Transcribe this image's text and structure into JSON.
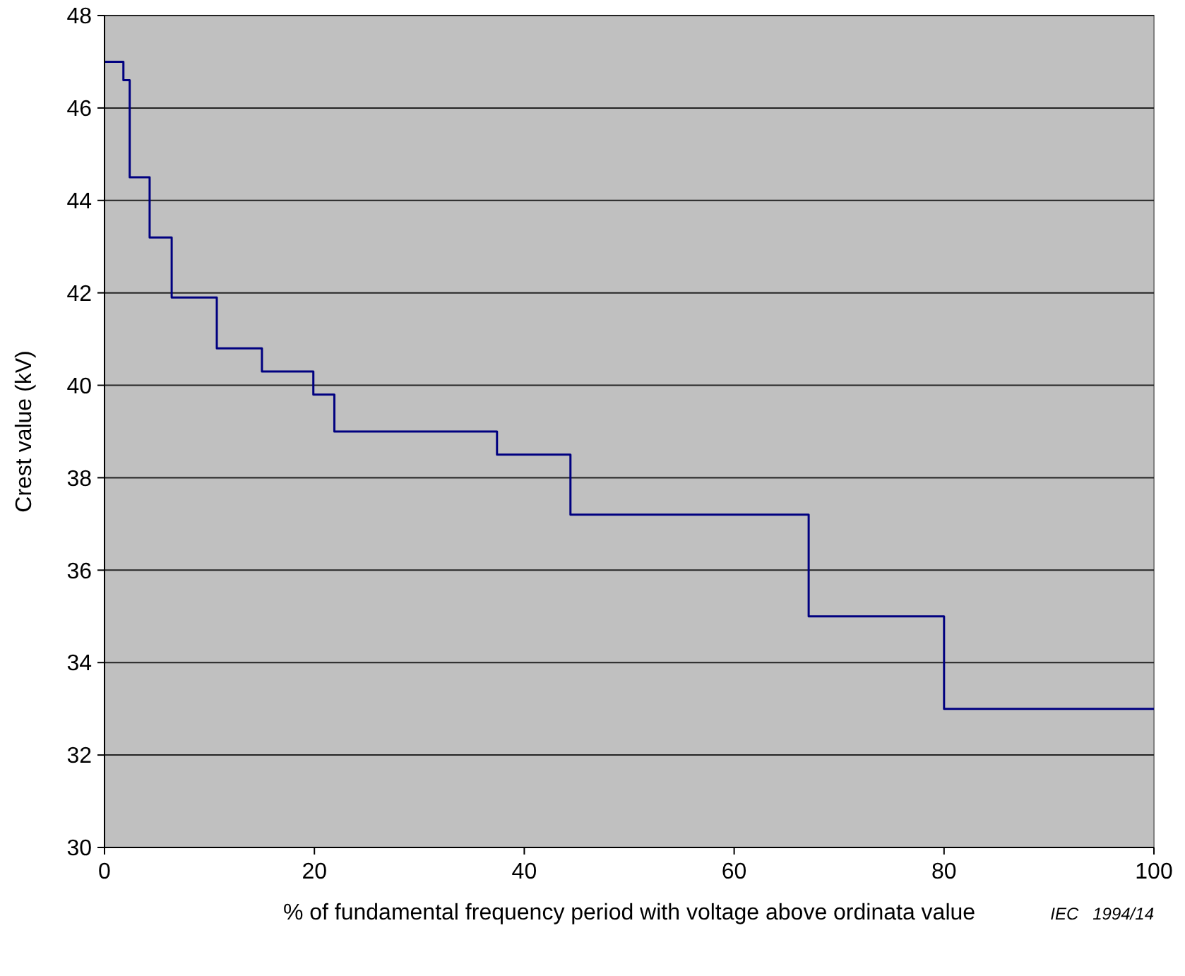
{
  "chart_data": {
    "type": "step",
    "xlabel": "% of fundamental frequency period with voltage above ordinata value",
    "ylabel": "Crest value   (kV)",
    "annotations": [
      "IEC   1994/14"
    ],
    "x": [
      0,
      1.8,
      2.4,
      4.3,
      6.4,
      10.7,
      15,
      19.9,
      21.9,
      37.4,
      44.4,
      67.1,
      80,
      100
    ],
    "series": [
      {
        "color": "#000080",
        "values": [
          47,
          46.6,
          44.5,
          43.2,
          41.9,
          40.8,
          40.3,
          39.8,
          39,
          38.5,
          37.2,
          35,
          33,
          33
        ]
      }
    ],
    "xlim": [
      0,
      100
    ],
    "xticks": [
      0,
      20,
      40,
      60,
      80,
      100
    ],
    "ylim": [
      30,
      48
    ],
    "yticks": [
      30,
      32,
      34,
      36,
      38,
      40,
      42,
      44,
      46,
      48
    ],
    "grid": "y"
  }
}
